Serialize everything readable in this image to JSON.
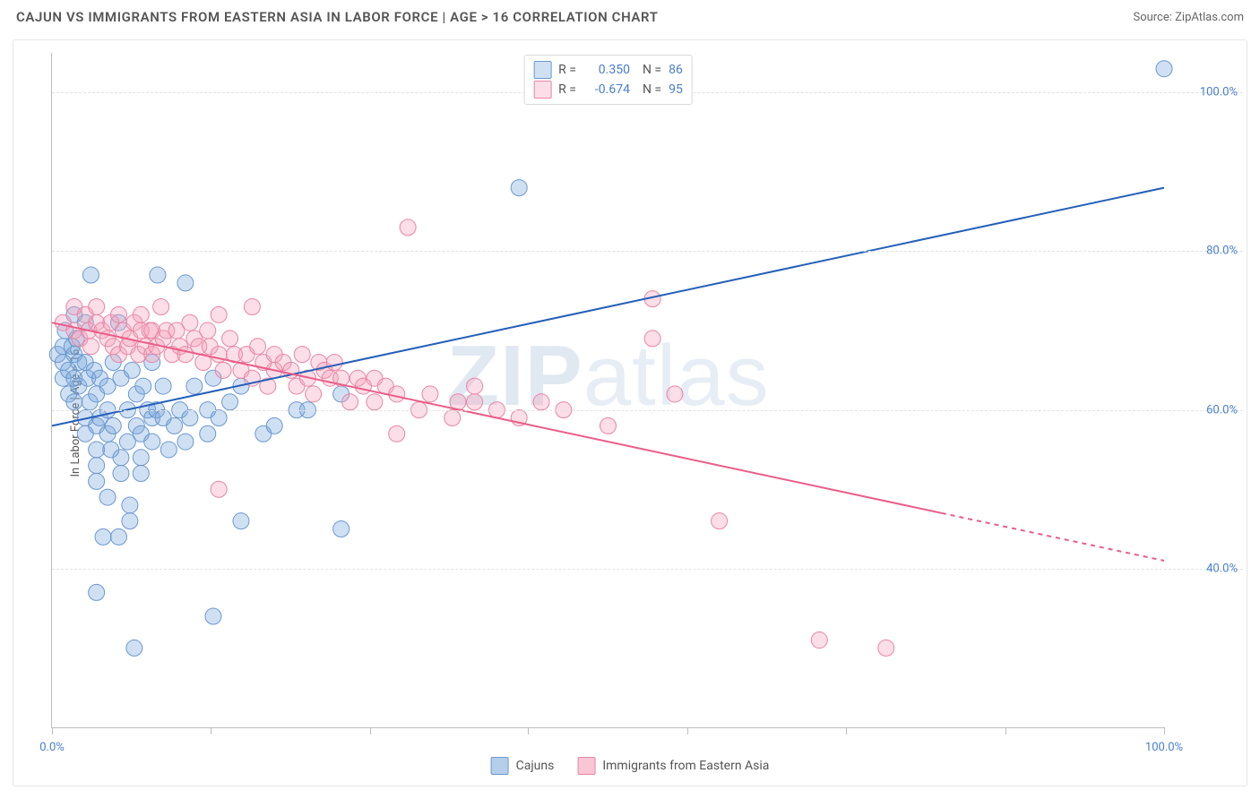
{
  "title": "CAJUN VS IMMIGRANTS FROM EASTERN ASIA IN LABOR FORCE | AGE > 16 CORRELATION CHART",
  "source": "Source: ZipAtlas.com",
  "ylabel": "In Labor Force | Age > 16",
  "watermark": {
    "a": "ZIP",
    "b": "atlas"
  },
  "chart": {
    "type": "scatter",
    "xlim": [
      0,
      100
    ],
    "ylim": [
      20,
      105
    ],
    "yticks": [
      40,
      60,
      80,
      100
    ],
    "ytick_labels": [
      "40.0%",
      "60.0%",
      "80.0%",
      "100.0%"
    ],
    "xticks": [
      0,
      14.3,
      28.6,
      42.8,
      57.1,
      71.4,
      85.7,
      100
    ],
    "xlim_labels": {
      "left": "0.0%",
      "right": "100.0%"
    },
    "grid_color": "#e3e3e3",
    "axis_color": "#bdbdbd",
    "background": "#ffffff",
    "series": [
      {
        "name": "Cajuns",
        "color_fill": "rgba(120,165,220,0.35)",
        "color_stroke": "#6a98cf",
        "marker_radius": 9,
        "R": "0.350",
        "N": "86",
        "trend": {
          "x1": 0,
          "y1": 58,
          "x2": 100,
          "y2": 88,
          "color": "#235fba",
          "width": 2,
          "dash_after_x": null
        },
        "points": [
          [
            0.5,
            67
          ],
          [
            1,
            66
          ],
          [
            1,
            64
          ],
          [
            1,
            68
          ],
          [
            1.5,
            65
          ],
          [
            1.5,
            62
          ],
          [
            1.2,
            70
          ],
          [
            1.8,
            68
          ],
          [
            2,
            67
          ],
          [
            2,
            64
          ],
          [
            2,
            72
          ],
          [
            2,
            61
          ],
          [
            2.2,
            69
          ],
          [
            2.4,
            63
          ],
          [
            2.4,
            66
          ],
          [
            3,
            66
          ],
          [
            3,
            71
          ],
          [
            3,
            59
          ],
          [
            3,
            57
          ],
          [
            3.2,
            64
          ],
          [
            3.4,
            61
          ],
          [
            3.5,
            77
          ],
          [
            3.8,
            65
          ],
          [
            4,
            62
          ],
          [
            4,
            55
          ],
          [
            4,
            53
          ],
          [
            4,
            58
          ],
          [
            4,
            51
          ],
          [
            4.3,
            59
          ],
          [
            4.3,
            64
          ],
          [
            4.6,
            44
          ],
          [
            5,
            60
          ],
          [
            5,
            63
          ],
          [
            5,
            57
          ],
          [
            5,
            49
          ],
          [
            5.3,
            55
          ],
          [
            5.5,
            66
          ],
          [
            5.5,
            58
          ],
          [
            6,
            71
          ],
          [
            6.2,
            64
          ],
          [
            6.2,
            54
          ],
          [
            6.2,
            52
          ],
          [
            6.8,
            60
          ],
          [
            6.8,
            56
          ],
          [
            7,
            48
          ],
          [
            7,
            46
          ],
          [
            7.2,
            65
          ],
          [
            7.4,
            30
          ],
          [
            7.6,
            62
          ],
          [
            7.6,
            58
          ],
          [
            8,
            54
          ],
          [
            8,
            57
          ],
          [
            8,
            52
          ],
          [
            8.2,
            63
          ],
          [
            8.6,
            60
          ],
          [
            9,
            59
          ],
          [
            9,
            56
          ],
          [
            9,
            66
          ],
          [
            9.4,
            60
          ],
          [
            9.5,
            77
          ],
          [
            10,
            59
          ],
          [
            10,
            63
          ],
          [
            10.5,
            55
          ],
          [
            11,
            58
          ],
          [
            11.5,
            60
          ],
          [
            12,
            56
          ],
          [
            12,
            76
          ],
          [
            12.4,
            59
          ],
          [
            12.8,
            63
          ],
          [
            14,
            57
          ],
          [
            14,
            60
          ],
          [
            14.5,
            64
          ],
          [
            14.5,
            34
          ],
          [
            15,
            59
          ],
          [
            16,
            61
          ],
          [
            17,
            46
          ],
          [
            17,
            63
          ],
          [
            19,
            57
          ],
          [
            20,
            58
          ],
          [
            22,
            60
          ],
          [
            23,
            60
          ],
          [
            26,
            45
          ],
          [
            26,
            62
          ],
          [
            42,
            88
          ],
          [
            4,
            37
          ],
          [
            6,
            44
          ],
          [
            100,
            103
          ]
        ]
      },
      {
        "name": "Immigrants from Eastern Asia",
        "color_fill": "rgba(244,160,185,0.35)",
        "color_stroke": "#e985a5",
        "marker_radius": 9,
        "R": "-0.674",
        "N": "95",
        "trend": {
          "x1": 0,
          "y1": 71,
          "x2": 100,
          "y2": 41,
          "color": "#eb5c87",
          "width": 2,
          "dash_after_x": 80
        },
        "points": [
          [
            1,
            71
          ],
          [
            2,
            70
          ],
          [
            2,
            73
          ],
          [
            2.5,
            69
          ],
          [
            3,
            72
          ],
          [
            3.3,
            70
          ],
          [
            3.5,
            68
          ],
          [
            4,
            71
          ],
          [
            4,
            73
          ],
          [
            4.5,
            70
          ],
          [
            5,
            69
          ],
          [
            5.3,
            71
          ],
          [
            5.5,
            68
          ],
          [
            6,
            72
          ],
          [
            6,
            67
          ],
          [
            6.4,
            70
          ],
          [
            6.8,
            68
          ],
          [
            7,
            69
          ],
          [
            7.4,
            71
          ],
          [
            7.8,
            67
          ],
          [
            8,
            70
          ],
          [
            8,
            72
          ],
          [
            8.4,
            68
          ],
          [
            8.8,
            70
          ],
          [
            9,
            67
          ],
          [
            9,
            70
          ],
          [
            9.4,
            68
          ],
          [
            9.8,
            73
          ],
          [
            10,
            69
          ],
          [
            10.3,
            70
          ],
          [
            10.8,
            67
          ],
          [
            11.2,
            70
          ],
          [
            11.5,
            68
          ],
          [
            12,
            67
          ],
          [
            12.4,
            71
          ],
          [
            12.8,
            69
          ],
          [
            13.2,
            68
          ],
          [
            13.6,
            66
          ],
          [
            14,
            70
          ],
          [
            14.2,
            68
          ],
          [
            15,
            72
          ],
          [
            15,
            67
          ],
          [
            15.4,
            65
          ],
          [
            16,
            69
          ],
          [
            16.4,
            67
          ],
          [
            17,
            65
          ],
          [
            17.5,
            67
          ],
          [
            18,
            73
          ],
          [
            18,
            64
          ],
          [
            18.5,
            68
          ],
          [
            19,
            66
          ],
          [
            19.4,
            63
          ],
          [
            20,
            65
          ],
          [
            20,
            67
          ],
          [
            20.8,
            66
          ],
          [
            21.5,
            65
          ],
          [
            22,
            63
          ],
          [
            22.5,
            67
          ],
          [
            23,
            64
          ],
          [
            23.5,
            62
          ],
          [
            24,
            66
          ],
          [
            24.5,
            65
          ],
          [
            25,
            64
          ],
          [
            25.4,
            66
          ],
          [
            26,
            64
          ],
          [
            26.8,
            61
          ],
          [
            27.5,
            64
          ],
          [
            28,
            63
          ],
          [
            29,
            61
          ],
          [
            29,
            64
          ],
          [
            30,
            63
          ],
          [
            31,
            57
          ],
          [
            31,
            62
          ],
          [
            32,
            83
          ],
          [
            33,
            60
          ],
          [
            34,
            62
          ],
          [
            36,
            59
          ],
          [
            36.5,
            61
          ],
          [
            38,
            61
          ],
          [
            38,
            63
          ],
          [
            40,
            60
          ],
          [
            42,
            59
          ],
          [
            44,
            61
          ],
          [
            46,
            60
          ],
          [
            50,
            58
          ],
          [
            15,
            50
          ],
          [
            54,
            74
          ],
          [
            54,
            69
          ],
          [
            56,
            62
          ],
          [
            60,
            46
          ],
          [
            69,
            31
          ],
          [
            75,
            30
          ]
        ]
      }
    ]
  },
  "legend_bottom": [
    {
      "label": "Cajuns",
      "fill": "rgba(120,165,220,0.55)",
      "border": "#6a98cf"
    },
    {
      "label": "Immigrants from Eastern Asia",
      "fill": "rgba(244,160,185,0.6)",
      "border": "#e985a5"
    }
  ]
}
